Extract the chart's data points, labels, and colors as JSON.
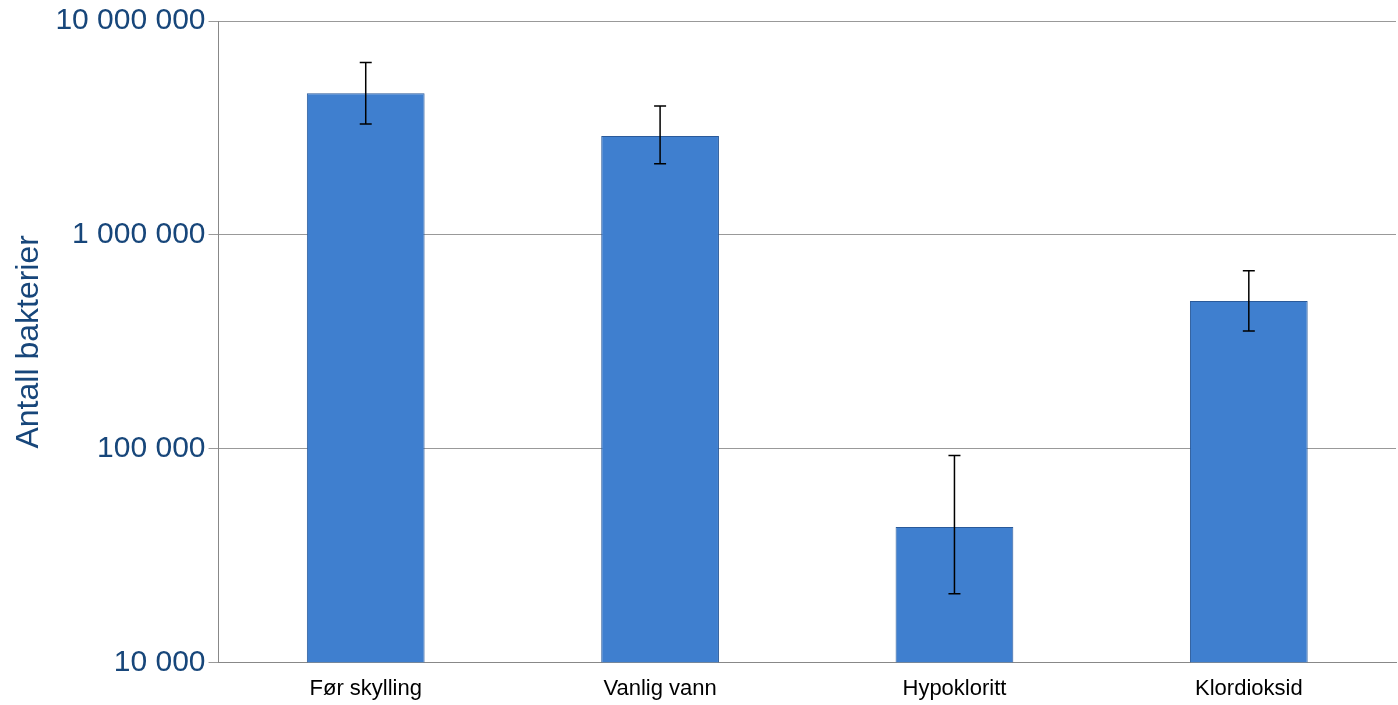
{
  "chart_data": {
    "type": "bar",
    "ylabel": "Antall bakterier",
    "categories": [
      "Før skylling",
      "Vanlig vann",
      "Hypokloritt",
      "Klordioksid"
    ],
    "values": [
      4600000,
      2900000,
      43000,
      490000
    ],
    "errors": [
      [
        3300000,
        6400000
      ],
      [
        2150000,
        4000000
      ],
      [
        21000,
        93000
      ],
      [
        355000,
        680000
      ]
    ],
    "color": "#3f7fcf",
    "log": true,
    "ylim": [
      10000,
      10000000
    ],
    "yticks": [
      {
        "value": 10000,
        "label": "10 000"
      },
      {
        "value": 100000,
        "label": "100 000"
      },
      {
        "value": 1000000,
        "label": "1 000 000"
      },
      {
        "value": 10000000,
        "label": "10 000 000"
      }
    ],
    "grid": "y",
    "legend": false
  }
}
